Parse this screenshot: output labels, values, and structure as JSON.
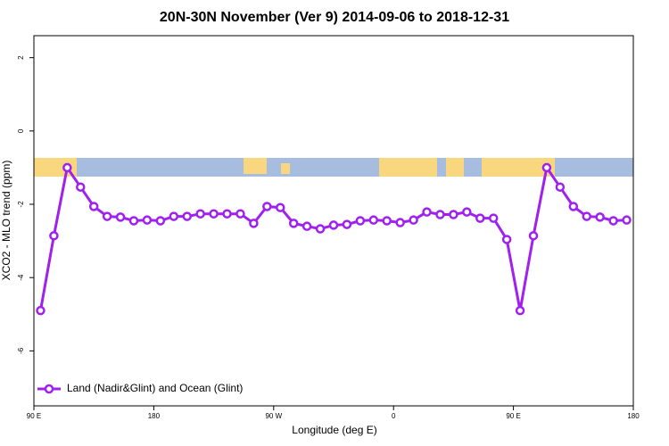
{
  "chart_data": {
    "type": "line",
    "title": "20N-30N November (Ver 9)   2014-09-06 to 2018-12-31",
    "x_label": "Longitude (deg E)",
    "y_label": "XCO2 - MLO trend (ppm)",
    "x": [
      95,
      105,
      115,
      125,
      135,
      145,
      155,
      165,
      175,
      185,
      195,
      205,
      215,
      225,
      235,
      245,
      255,
      265,
      275,
      285,
      295,
      305,
      315,
      325,
      335,
      345,
      355,
      365,
      375,
      385,
      395,
      405,
      415,
      425,
      435,
      445,
      455,
      465,
      475,
      485,
      495,
      505,
      515,
      525,
      535
    ],
    "series": [
      {
        "name": "Land (Nadir&Glint) and Ocean (Glint)",
        "color": "#a020f0",
        "values": [
          -4.9,
          -2.86,
          -1.0,
          -1.53,
          -2.06,
          -2.33,
          -2.35,
          -2.45,
          -2.43,
          -2.45,
          -2.33,
          -2.33,
          -2.26,
          -2.26,
          -2.26,
          -2.26,
          -2.52,
          -2.06,
          -2.09,
          -2.52,
          -2.6,
          -2.67,
          -2.57,
          -2.55,
          -2.45,
          -2.43,
          -2.45,
          -2.5,
          -2.43,
          -2.21,
          -2.28,
          -2.28,
          -2.21,
          -2.38,
          -2.38,
          -2.96,
          -4.9,
          -2.86,
          -1.0,
          -1.53,
          -2.06,
          -2.33,
          -2.35,
          -2.45,
          -2.43
        ]
      }
    ],
    "xlim": [
      90,
      540
    ],
    "xticks": [
      {
        "value": 90,
        "label": "90 E"
      },
      {
        "value": 180,
        "label": "180"
      },
      {
        "value": 270,
        "label": "90 W"
      },
      {
        "value": 360,
        "label": "0"
      },
      {
        "value": 450,
        "label": "90 E"
      },
      {
        "value": 540,
        "label": "180"
      }
    ],
    "ylim": [
      -7.5,
      2.6
    ],
    "yticks": [
      -6,
      -4,
      -2,
      0,
      2
    ],
    "legend": "bottom-left",
    "grid": false
  }
}
